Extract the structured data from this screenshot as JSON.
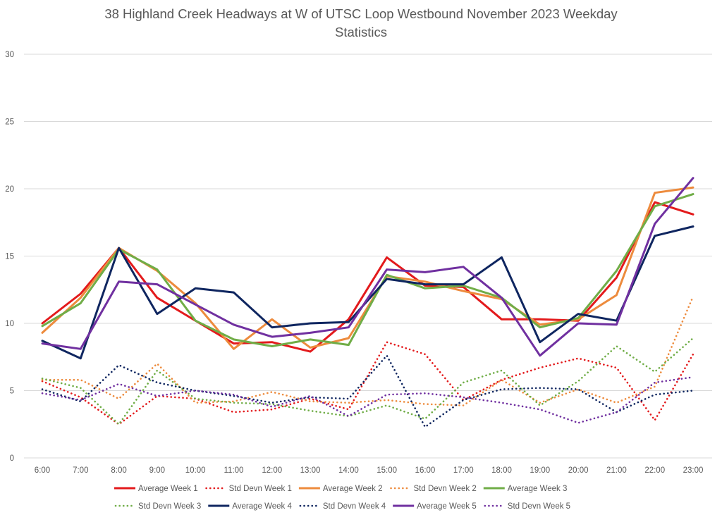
{
  "chart_data": {
    "type": "line",
    "title": "38 Highland Creek Headways at W of UTSC Loop Westbound November 2023 Weekday Statistics",
    "title_lines": [
      "38 Highland Creek Headways at W of UTSC Loop Westbound November 2023 Weekday",
      "Statistics"
    ],
    "xlabel": "",
    "ylabel": "",
    "ylim": [
      0,
      30
    ],
    "yticks": [
      0,
      5,
      10,
      15,
      20,
      25,
      30
    ],
    "grid": true,
    "legend_position": "bottom",
    "categories": [
      "6:00",
      "7:00",
      "8:00",
      "9:00",
      "10:00",
      "11:00",
      "12:00",
      "13:00",
      "14:00",
      "15:00",
      "16:00",
      "17:00",
      "18:00",
      "19:00",
      "20:00",
      "21:00",
      "22:00",
      "23:00"
    ],
    "series": [
      {
        "name": "Average Week 1",
        "color": "#e31a1c",
        "style": "solid",
        "values": [
          10.0,
          12.2,
          15.6,
          11.9,
          10.2,
          8.5,
          8.6,
          7.9,
          10.3,
          14.9,
          12.8,
          12.7,
          10.3,
          10.3,
          10.2,
          13.4,
          19.0,
          18.1
        ]
      },
      {
        "name": "Std Devn Week 1",
        "color": "#e31a1c",
        "style": "dotted",
        "values": [
          5.7,
          4.5,
          2.5,
          4.6,
          4.4,
          3.4,
          3.6,
          4.4,
          3.6,
          8.6,
          7.7,
          4.3,
          5.8,
          6.7,
          7.4,
          6.7,
          2.8,
          7.7
        ]
      },
      {
        "name": "Average Week 2",
        "color": "#ed8b3d",
        "style": "solid",
        "values": [
          9.3,
          11.9,
          15.6,
          13.9,
          11.5,
          8.1,
          10.3,
          8.2,
          8.9,
          13.5,
          13.1,
          12.4,
          11.8,
          9.9,
          10.3,
          12.1,
          19.7,
          20.1
        ]
      },
      {
        "name": "Std Devn Week 2",
        "color": "#ed8b3d",
        "style": "dotted",
        "values": [
          5.8,
          5.8,
          4.4,
          7.0,
          4.1,
          4.2,
          4.9,
          4.2,
          4.1,
          4.3,
          4.0,
          3.9,
          5.8,
          4.1,
          5.1,
          4.1,
          5.3,
          12.0
        ]
      },
      {
        "name": "Average Week 3",
        "color": "#70ad47",
        "style": "solid",
        "values": [
          9.8,
          11.5,
          15.5,
          14.0,
          10.2,
          8.8,
          8.3,
          8.8,
          8.4,
          13.6,
          12.6,
          12.8,
          11.9,
          9.7,
          10.4,
          13.9,
          18.7,
          19.6
        ]
      },
      {
        "name": "Std Devn Week 3",
        "color": "#70ad47",
        "style": "dotted",
        "values": [
          5.9,
          5.2,
          2.5,
          6.5,
          4.4,
          4.1,
          4.0,
          3.5,
          3.1,
          3.9,
          2.9,
          5.6,
          6.5,
          3.9,
          5.7,
          8.3,
          6.4,
          8.9
        ]
      },
      {
        "name": "Average Week 4",
        "color": "#0f2660",
        "style": "solid",
        "values": [
          8.7,
          7.4,
          15.6,
          10.7,
          12.6,
          12.3,
          9.7,
          10.0,
          10.1,
          13.3,
          12.9,
          12.9,
          14.9,
          8.6,
          10.7,
          10.2,
          16.5,
          17.2
        ]
      },
      {
        "name": "Std Devn Week 4",
        "color": "#0f2660",
        "style": "dotted",
        "values": [
          5.1,
          4.2,
          6.9,
          5.6,
          5.0,
          4.6,
          4.1,
          4.5,
          4.4,
          7.6,
          2.3,
          4.3,
          5.1,
          5.2,
          5.1,
          3.4,
          4.7,
          5.0
        ]
      },
      {
        "name": "Average Week 5",
        "color": "#7030a0",
        "style": "solid",
        "values": [
          8.5,
          8.1,
          13.1,
          12.9,
          11.4,
          9.9,
          9.0,
          9.3,
          9.7,
          14.0,
          13.8,
          14.2,
          11.9,
          7.6,
          10.0,
          9.9,
          17.4,
          20.8
        ]
      },
      {
        "name": "Std Devn Week 5",
        "color": "#7030a0",
        "style": "dotted",
        "values": [
          4.8,
          4.3,
          5.5,
          4.6,
          5.0,
          4.7,
          3.8,
          4.6,
          3.1,
          4.7,
          4.8,
          4.5,
          4.1,
          3.6,
          2.6,
          3.4,
          5.6,
          6.0
        ]
      }
    ]
  }
}
